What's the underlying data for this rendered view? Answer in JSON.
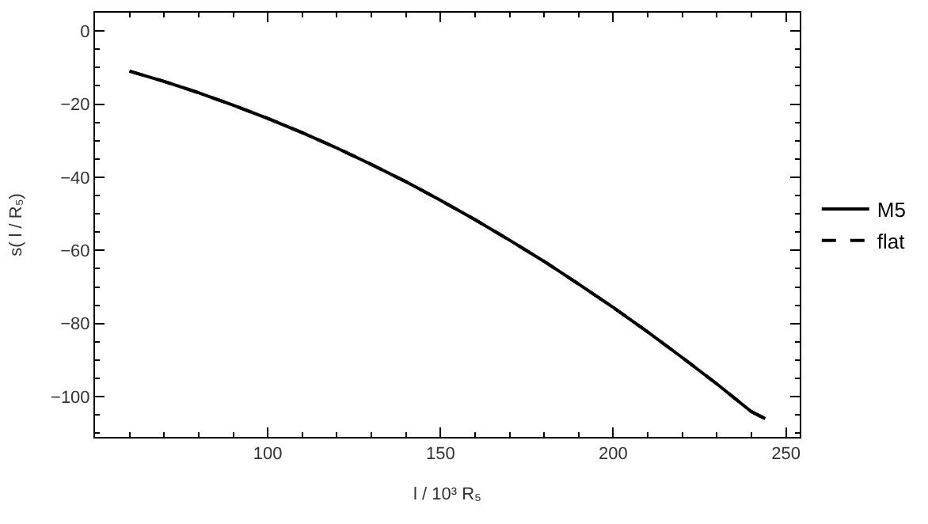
{
  "chart_data": {
    "type": "line",
    "xlabel": "l / 10³ R₅",
    "ylabel": "s( l / R₅)",
    "x": [
      60,
      70,
      80,
      90,
      100,
      110,
      120,
      130,
      140,
      150,
      160,
      170,
      180,
      190,
      200,
      210,
      220,
      230,
      240,
      244
    ],
    "series": [
      {
        "name": "M5",
        "color": "#000000",
        "line_style": "solid",
        "values": [
          -11.0,
          -13.8,
          -16.9,
          -20.3,
          -23.9,
          -27.8,
          -32.0,
          -36.5,
          -41.2,
          -46.3,
          -51.6,
          -57.2,
          -63.0,
          -69.2,
          -75.6,
          -82.3,
          -89.3,
          -96.5,
          -104.1,
          -106.0
        ]
      },
      {
        "name": "flat",
        "color": "#000000",
        "line_style": "dashed",
        "values": [
          -11.0,
          -13.8,
          -16.9,
          -20.3,
          -23.9,
          -27.8,
          -32.0,
          -36.5,
          -41.2,
          -46.3,
          -51.6,
          -57.2,
          -63.0,
          -69.2,
          -75.6,
          -82.3,
          -89.3,
          -96.5,
          -104.1,
          -106.0
        ]
      }
    ],
    "xlim": [
      50,
      254
    ],
    "xticks": [
      100,
      150,
      200,
      250
    ],
    "ylim": [
      -111,
      5
    ],
    "yticks": [
      0,
      -20,
      -40,
      -60,
      -80,
      -100
    ],
    "legend": "right",
    "marker": "none"
  }
}
